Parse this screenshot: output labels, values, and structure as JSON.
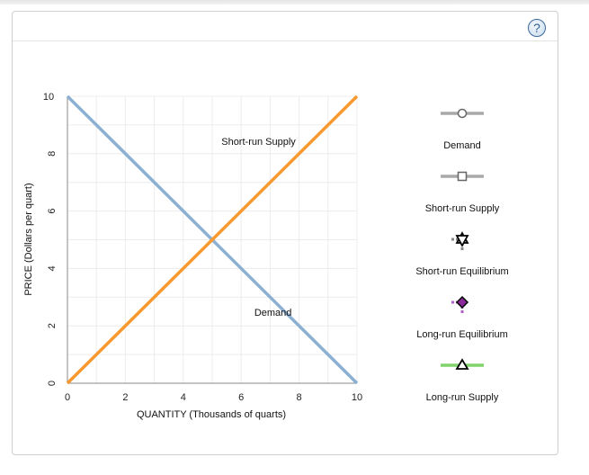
{
  "help": {
    "label": "?"
  },
  "chart_data": {
    "type": "line",
    "xlabel": "QUANTITY (Thousands of quarts)",
    "ylabel": "PRICE (Dollars per quart)",
    "xlim": [
      0,
      10
    ],
    "ylim": [
      0,
      10
    ],
    "x_ticks": [
      "0",
      "2",
      "4",
      "6",
      "8",
      "10"
    ],
    "y_ticks": [
      "0",
      "2",
      "4",
      "6",
      "8",
      "10"
    ],
    "grid": true,
    "series": [
      {
        "name": "Demand",
        "color": "#8bb0d2",
        "points": [
          [
            0,
            10
          ],
          [
            10,
            0
          ]
        ],
        "label": "Demand",
        "label_at": [
          7.1,
          2.35
        ]
      },
      {
        "name": "Short-run Supply",
        "color": "#f7992f",
        "points": [
          [
            0,
            0
          ],
          [
            10,
            10
          ]
        ],
        "label": "Short-run Supply",
        "label_at": [
          6.6,
          8.3
        ]
      }
    ]
  },
  "legend": [
    {
      "label": "Demand",
      "icon": "circle-marker-icon",
      "line_color": "#a9a9a9"
    },
    {
      "label": "Short-run Supply",
      "icon": "square-marker-icon",
      "line_color": "#a9a9a9"
    },
    {
      "label": "Short-run Equilibrium",
      "icon": "star-marker-icon",
      "line_color": "#888888"
    },
    {
      "label": "Long-run Equilibrium",
      "icon": "diamond-marker-icon",
      "line_color": "#b060c8",
      "fill": "#8a2a9a"
    },
    {
      "label": "Long-run Supply",
      "icon": "triangle-marker-icon",
      "line_color": "#7fd36a"
    }
  ]
}
